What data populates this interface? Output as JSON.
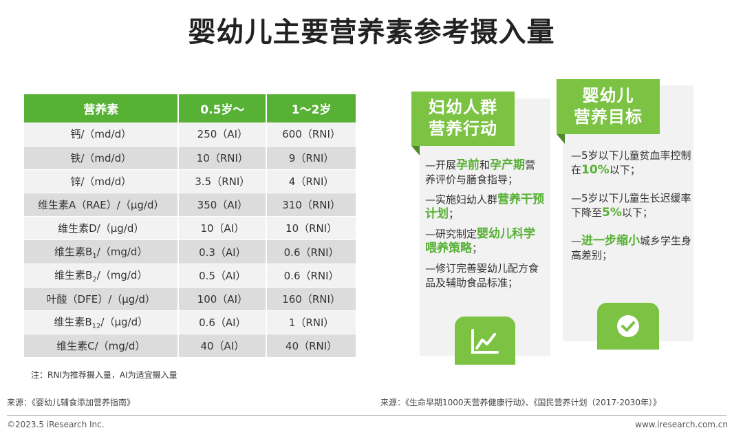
{
  "title": "婴幼儿主要营养素参考摄入量",
  "table": {
    "headers": [
      "营养素",
      "0.5岁～",
      "1～2岁"
    ],
    "rows": [
      {
        "name": "钙/（md/d）",
        "sub": "",
        "unit": "",
        "v1": "250（AI）",
        "v2": "600（RNI）"
      },
      {
        "name": "铁/（md/d）",
        "sub": "",
        "unit": "",
        "v1": "10（RNI）",
        "v2": "9（RNI）"
      },
      {
        "name": "锌/（md/d）",
        "sub": "",
        "unit": "",
        "v1": "3.5（RNI）",
        "v2": "4（RNI）"
      },
      {
        "name": "维生素A（RAE）/（μg/d）",
        "sub": "",
        "unit": "",
        "v1": "350（AI）",
        "v2": "310（RNI）"
      },
      {
        "name": "维生素D/（μg/d）",
        "sub": "",
        "unit": "",
        "v1": "10（AI）",
        "v2": "10（RNI）"
      },
      {
        "name": "维生素B",
        "sub": "1",
        "unit": "/（mg/d）",
        "v1": "0.3（AI）",
        "v2": "0.6（RNI）"
      },
      {
        "name": "维生素B",
        "sub": "2",
        "unit": "/（mg/d）",
        "v1": "0.5（AI）",
        "v2": "0.6（RNI）"
      },
      {
        "name": "叶酸（DFE）/（μg/d）",
        "sub": "",
        "unit": "",
        "v1": "100（AI）",
        "v2": "160（RNI）"
      },
      {
        "name": "维生素B",
        "sub": "12",
        "unit": "/（μg/d）",
        "v1": "0.6（AI）",
        "v2": "1（RNI）"
      },
      {
        "name": "维生素C/（mg/d）",
        "sub": "",
        "unit": "",
        "v1": "40（AI）",
        "v2": "40（RNI）"
      }
    ]
  },
  "note": "注：RNI为推荐摄入量，AI为适宜摄入量",
  "left_card": {
    "title_line1": "妇幼人群",
    "title_line2": "营养行动",
    "items": [
      {
        "pre": "—开展",
        "hl1": "孕前",
        "mid": "和",
        "hl2": "孕产期",
        "post": "营养评价与膳食指导；"
      },
      {
        "pre": "—实施妇幼人群",
        "hl1": "营养干预计划",
        "mid": "",
        "hl2": "",
        "post": "；"
      },
      {
        "pre": "—研究制定",
        "hl1": "婴幼儿科学喂养策略",
        "mid": "",
        "hl2": "",
        "post": "；"
      },
      {
        "pre": "—修订完善婴幼儿配方食品及辅助食品标准；",
        "hl1": "",
        "mid": "",
        "hl2": "",
        "post": ""
      }
    ],
    "icon": "line-chart-icon"
  },
  "right_card": {
    "title_line1": "婴幼儿",
    "title_line2": "营养目标",
    "items": [
      {
        "pre": "—5岁以下儿童贫血率控制在",
        "hl": "10%",
        "post": "以下；"
      },
      {
        "pre": "—5岁以下儿童生长迟缓率下降至",
        "hl": "5%",
        "post": "以下；"
      },
      {
        "pre": "—",
        "hl": "进一步缩小",
        "post": "城乡学生身高差别；"
      }
    ],
    "icon": "check-circle-icon"
  },
  "source_left": "来源：《婴幼儿辅食添加营养指南》",
  "source_right": "来源：《生命早期1000天营养健康行动》、《国民营养计划（2017-2030年）》",
  "footer_left": "©2023.5 iResearch Inc.",
  "footer_right": "www.iresearch.com.cn",
  "colors": {
    "accent": "#57b135",
    "banner": "#7cc344",
    "card_bg": "#f2f2f2"
  }
}
